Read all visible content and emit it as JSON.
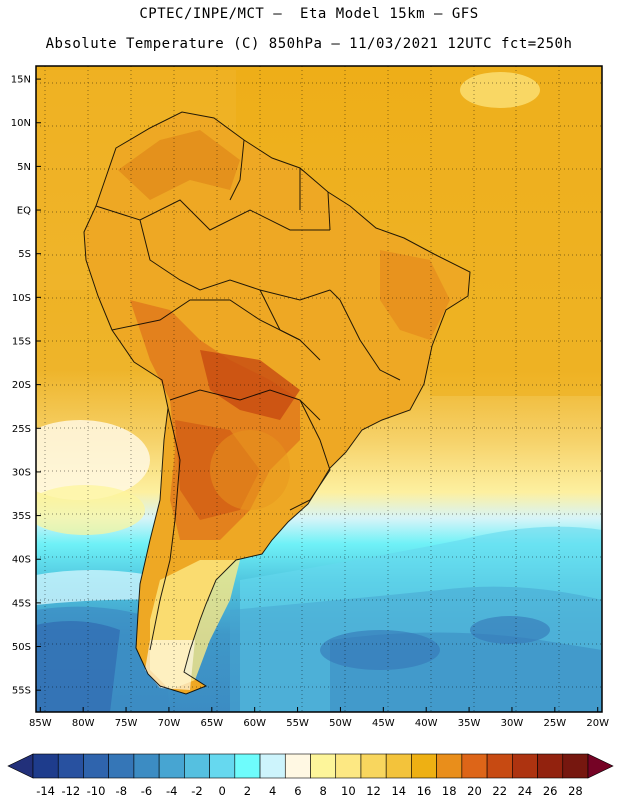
{
  "header": {
    "line1": "CPTEC/INPE/MCT —  Eta Model 15km — GFS",
    "line2": "Absolute Temperature (C) 850hPa — 11/03/2021 12UTC fct=250h"
  },
  "map": {
    "lat_labels": [
      "15N",
      "10N",
      "5N",
      "EQ",
      "5S",
      "10S",
      "15S",
      "20S",
      "25S",
      "30S",
      "35S",
      "40S",
      "45S",
      "50S",
      "55S"
    ],
    "lon_labels": [
      "85W",
      "80W",
      "75W",
      "70W",
      "65W",
      "60W",
      "55W",
      "50W",
      "45W",
      "40W",
      "35W",
      "30W",
      "25W",
      "20W"
    ],
    "lat_values": [
      15,
      10,
      5,
      0,
      -5,
      -10,
      -15,
      -20,
      -25,
      -30,
      -35,
      -40,
      -45,
      -50,
      -55
    ],
    "lon_values": [
      -85,
      -80,
      -75,
      -70,
      -65,
      -60,
      -55,
      -50,
      -45,
      -40,
      -35,
      -30,
      -25,
      -20
    ],
    "extent": {
      "lon": [
        -85.5,
        -19.5
      ],
      "lat": [
        -57.5,
        16.5
      ]
    }
  },
  "colorbar": {
    "labels": [
      "-14",
      "-12",
      "-10",
      "-8",
      "-6",
      "-4",
      "-2",
      "0",
      "2",
      "4",
      "6",
      "8",
      "10",
      "12",
      "14",
      "16",
      "18",
      "20",
      "22",
      "24",
      "26",
      "28"
    ],
    "colors": [
      "#1e3c8c",
      "#2851a0",
      "#2f64ad",
      "#3576b7",
      "#3c8cc3",
      "#47a5d2",
      "#55c0e0",
      "#66d8ef",
      "#6efcfc",
      "#cdf4fc",
      "#fff8e3",
      "#fdf59a",
      "#fde883",
      "#f8d65e",
      "#f3c33b",
      "#eeb013",
      "#e98e1b",
      "#dd6518",
      "#c74a12",
      "#ad3310",
      "#92220e",
      "#76170f"
    ],
    "end_low": "#22307a",
    "end_high": "#750325"
  }
}
